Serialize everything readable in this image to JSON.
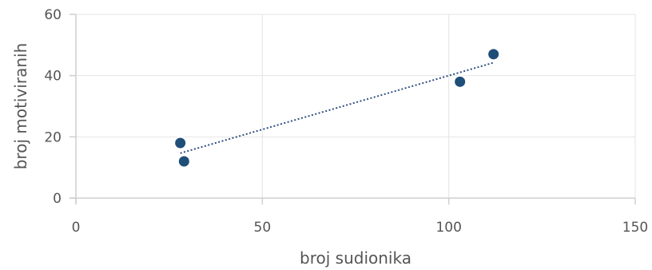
{
  "chart_data": {
    "type": "scatter",
    "xlabel": "broj sudionika",
    "ylabel": "broj motiviranih",
    "xlim": [
      0,
      150
    ],
    "ylim": [
      0,
      60
    ],
    "x_ticks": [
      0,
      50,
      100,
      150
    ],
    "y_ticks": [
      0,
      20,
      40,
      60
    ],
    "grid": true,
    "trendline": {
      "type": "linear",
      "style": "dotted",
      "x_range": [
        28,
        112
      ]
    },
    "series": [
      {
        "color": "#1f4e79",
        "points": [
          {
            "x": 28,
            "y": 18
          },
          {
            "x": 29,
            "y": 12
          },
          {
            "x": 103,
            "y": 38
          },
          {
            "x": 112,
            "y": 47
          }
        ]
      }
    ]
  }
}
